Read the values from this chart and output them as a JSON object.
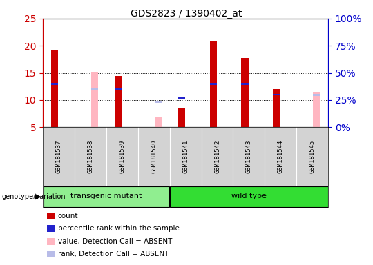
{
  "title": "GDS2823 / 1390402_at",
  "samples": [
    "GSM181537",
    "GSM181538",
    "GSM181539",
    "GSM181540",
    "GSM181541",
    "GSM181542",
    "GSM181543",
    "GSM181544",
    "GSM181545"
  ],
  "count_values": [
    19.3,
    null,
    14.4,
    null,
    8.5,
    20.9,
    17.7,
    12.0,
    null
  ],
  "rank_values": [
    13.0,
    null,
    12.0,
    null,
    10.3,
    13.0,
    13.0,
    11.0,
    null
  ],
  "absent_value_values": [
    null,
    15.2,
    null,
    6.9,
    null,
    null,
    null,
    null,
    11.5
  ],
  "absent_rank_values": [
    null,
    12.1,
    null,
    9.7,
    null,
    null,
    null,
    null,
    10.9
  ],
  "groups": [
    {
      "label": "transgenic mutant",
      "start": 0,
      "end": 3,
      "color": "#90ee90"
    },
    {
      "label": "wild type",
      "start": 4,
      "end": 8,
      "color": "#33dd33"
    }
  ],
  "ylim": [
    5,
    25
  ],
  "yticks": [
    5,
    10,
    15,
    20,
    25
  ],
  "grid_lines": [
    10,
    15,
    20
  ],
  "right_ytick_vals": [
    0,
    25,
    50,
    75,
    100
  ],
  "right_ylim": [
    0,
    100
  ],
  "bar_color_red": "#cc0000",
  "bar_color_blue": "#2222cc",
  "bar_color_pink": "#ffb6c1",
  "bar_color_lavender": "#b8bce8",
  "left_axis_color": "#cc0000",
  "right_axis_color": "#0000cc",
  "plot_bg_color": "#ffffff",
  "gray_bg_color": "#d3d3d3",
  "legend_items": [
    {
      "color": "#cc0000",
      "label": "count"
    },
    {
      "color": "#2222cc",
      "label": "percentile rank within the sample"
    },
    {
      "color": "#ffb6c1",
      "label": "value, Detection Call = ABSENT"
    },
    {
      "color": "#b8bce8",
      "label": "rank, Detection Call = ABSENT"
    }
  ]
}
